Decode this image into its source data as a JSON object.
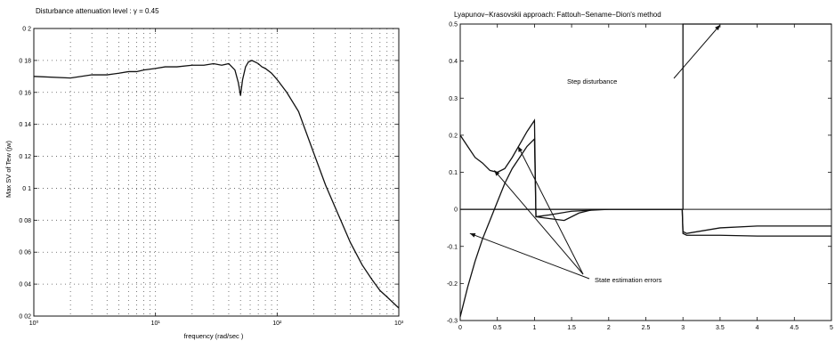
{
  "chart_data": [
    {
      "type": "line",
      "title": "Disturbance attenuation level : γ = 0.45",
      "xlabel": "frequency (rad/sec )",
      "ylabel": "Max SV of Tew (jw)",
      "xscale": "log",
      "xlim": [
        1,
        1000
      ],
      "ylim": [
        0.02,
        0.2
      ],
      "grid": true,
      "x_ticks": [
        1,
        10,
        100,
        1000
      ],
      "x_tick_labels": [
        "10⁰",
        "10¹",
        "10²",
        "10³"
      ],
      "y_ticks": [
        0.02,
        0.04,
        0.06,
        0.08,
        0.1,
        0.12,
        0.14,
        0.16,
        0.18,
        0.2
      ],
      "y_tick_labels": [
        "0 02",
        "0 04",
        "0 06",
        "0 08",
        "0 1",
        "0 12",
        "0 14",
        "0 16",
        "0 18",
        "0 2"
      ],
      "series": [
        {
          "x": [
            1,
            2,
            3,
            4,
            5,
            6,
            7,
            8,
            10,
            12,
            15,
            20,
            25,
            30,
            35,
            40,
            45,
            48,
            50,
            52,
            55,
            58,
            62,
            66,
            70,
            75,
            80,
            90,
            100,
            120,
            150,
            200,
            250,
            300,
            400,
            500,
            600,
            700,
            800,
            1000
          ],
          "y": [
            0.17,
            0.169,
            0.171,
            0.171,
            0.172,
            0.173,
            0.173,
            0.174,
            0.175,
            0.176,
            0.176,
            0.177,
            0.177,
            0.178,
            0.177,
            0.178,
            0.174,
            0.166,
            0.158,
            0.168,
            0.176,
            0.179,
            0.18,
            0.179,
            0.178,
            0.176,
            0.175,
            0.172,
            0.168,
            0.16,
            0.148,
            0.122,
            0.102,
            0.088,
            0.066,
            0.052,
            0.043,
            0.036,
            0.032,
            0.025
          ]
        }
      ]
    },
    {
      "type": "line",
      "title": "Lyapunov−Krasovskii approach: Fattouh−Sename−Dion's method",
      "xlabel": "",
      "ylabel": "",
      "xlim": [
        0,
        5
      ],
      "ylim": [
        -0.3,
        0.5
      ],
      "x_ticks": [
        0,
        0.5,
        1,
        1.5,
        2,
        2.5,
        3,
        3.5,
        4,
        4.5,
        5
      ],
      "x_tick_labels": [
        "0",
        "0.5",
        "1",
        "1.5",
        "2",
        "2.5",
        "3",
        "3.5",
        "4",
        "4.5",
        "5"
      ],
      "y_ticks": [
        -0.3,
        -0.2,
        -0.1,
        0,
        0.1,
        0.2,
        0.3,
        0.4,
        0.5
      ],
      "y_tick_labels": [
        "-0.3",
        "-0.2",
        "-0.1",
        "0",
        "0.1",
        "0.2",
        "0.3",
        "0.4",
        "0.5"
      ],
      "annotations": [
        "Step disturbance",
        "State estimation errors"
      ],
      "series": [
        {
          "x": [
            0,
            1.0,
            1.0,
            3.0,
            3.0,
            5.0
          ],
          "y": [
            0,
            0,
            0,
            0,
            0.5,
            0.5
          ]
        },
        {
          "x": [
            0,
            0.1,
            0.2,
            0.3,
            0.4,
            0.5,
            0.6,
            0.7,
            0.8,
            0.9,
            1.0,
            1.02,
            1.2,
            1.4,
            1.6,
            1.8,
            2.0,
            2.99,
            3.0,
            3.05,
            3.5,
            4.0,
            4.5,
            5.0
          ],
          "y": [
            0.2,
            0.17,
            0.14,
            0.125,
            0.105,
            0.1,
            0.11,
            0.14,
            0.175,
            0.21,
            0.24,
            -0.02,
            -0.025,
            -0.03,
            -0.01,
            0,
            0,
            0,
            -0.06,
            -0.065,
            -0.05,
            -0.045,
            -0.045,
            -0.045
          ]
        },
        {
          "x": [
            0,
            0.1,
            0.2,
            0.3,
            0.4,
            0.5,
            0.6,
            0.7,
            0.8,
            0.9,
            1.0,
            1.02,
            1.2,
            1.5,
            2.0,
            2.99,
            3.0,
            3.05,
            3.5,
            4.0,
            4.5,
            5.0
          ],
          "y": [
            -0.29,
            -0.21,
            -0.14,
            -0.08,
            -0.03,
            0.02,
            0.07,
            0.11,
            0.14,
            0.17,
            0.19,
            -0.02,
            -0.015,
            -0.005,
            0,
            0,
            -0.065,
            -0.07,
            -0.07,
            -0.072,
            -0.072,
            -0.072
          ]
        }
      ]
    }
  ]
}
